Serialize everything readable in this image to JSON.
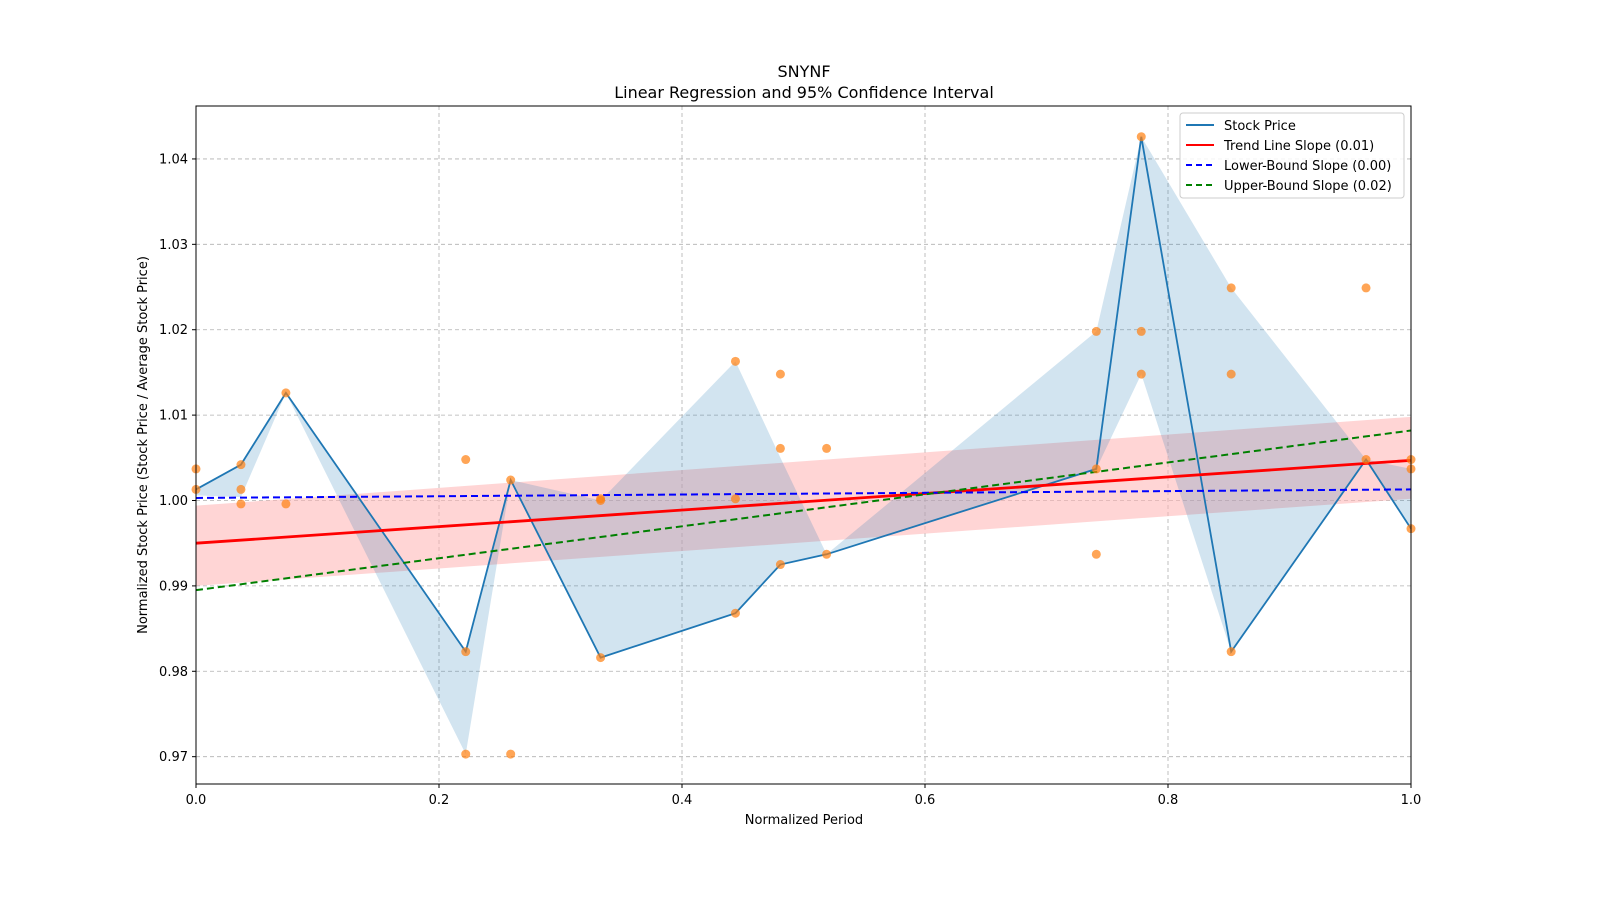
{
  "chart_data": {
    "type": "line",
    "title": "SNYNF",
    "subtitle": "Linear Regression and 95% Confidence Interval",
    "xlabel": "Normalized Period",
    "ylabel": "Normalized Stock Price (Stock Price / Average Stock Price)",
    "xlim": [
      0,
      1
    ],
    "ylim": [
      0.9668,
      1.0462
    ],
    "xticks": [
      0,
      0.2,
      0.4,
      0.6,
      0.8,
      1.0
    ],
    "xtick_labels": [
      "0.0",
      "0.2",
      "0.4",
      "0.6",
      "0.8",
      "1.0"
    ],
    "yticks": [
      0.97,
      0.98,
      0.99,
      1.0,
      1.01,
      1.02,
      1.03,
      1.04
    ],
    "ytick_labels": [
      "0.97",
      "0.98",
      "0.99",
      "1.00",
      "1.01",
      "1.02",
      "1.03",
      "1.04"
    ],
    "grid": true,
    "legend_position": "top-right",
    "colors": {
      "stock": "#1f77b4",
      "scatter": "#ff7f0e",
      "trend": "#ff0000",
      "lower": "#0000ff",
      "upper": "#008000",
      "trend_band": "#ffb3b3",
      "stock_band": "#1f77b4"
    },
    "legend": [
      {
        "label": "Stock Price",
        "style": "solid",
        "color": "#1f77b4"
      },
      {
        "label": "Trend Line Slope (0.01)",
        "style": "solid",
        "color": "#ff0000"
      },
      {
        "label": "Lower-Bound Slope (0.00)",
        "style": "dashed",
        "color": "#0000ff"
      },
      {
        "label": "Upper-Bound Slope (0.02)",
        "style": "dashed",
        "color": "#008000"
      }
    ],
    "stock_price": {
      "x": [
        0,
        0.037,
        0.074,
        0.222,
        0.259,
        0.333,
        0.444,
        0.481,
        0.519,
        0.741,
        0.778,
        0.852,
        0.963,
        1.0
      ],
      "y": [
        1.0013,
        1.0042,
        1.0126,
        0.9823,
        1.0024,
        0.9816,
        0.9868,
        0.9925,
        0.9937,
        1.0037,
        1.0426,
        0.9823,
        1.0048,
        0.9967
      ]
    },
    "stock_band": {
      "x": [
        0,
        0.037,
        0.074,
        0.222,
        0.259,
        0.333,
        0.444,
        0.481,
        0.519,
        0.741,
        0.778,
        0.852,
        0.963,
        1.0
      ],
      "lower": [
        1.0006,
        1.0004,
        1.0126,
        0.9703,
        1.0024,
        0.9816,
        0.9868,
        0.9925,
        0.9937,
        1.0037,
        1.0148,
        0.9823,
        1.0048,
        0.9967
      ],
      "upper": [
        1.0013,
        1.0042,
        1.0126,
        0.9823,
        1.0024,
        1.0,
        1.0163,
        1.005,
        0.9937,
        1.0198,
        1.0426,
        1.0249,
        1.0048,
        1.0037
      ]
    },
    "scatter": [
      [
        0,
        1.0037
      ],
      [
        0,
        1.0013
      ],
      [
        0.037,
        1.0042
      ],
      [
        0.037,
        1.0013
      ],
      [
        0.037,
        0.9996
      ],
      [
        0.074,
        1.0126
      ],
      [
        0.074,
        0.9996
      ],
      [
        0.222,
        1.0048
      ],
      [
        0.222,
        0.9823
      ],
      [
        0.222,
        0.9703
      ],
      [
        0.259,
        1.0024
      ],
      [
        0.259,
        0.9703
      ],
      [
        0.333,
        1.0002
      ],
      [
        0.333,
        1.0
      ],
      [
        0.333,
        0.9816
      ],
      [
        0.444,
        1.0163
      ],
      [
        0.444,
        1.0002
      ],
      [
        0.444,
        0.9868
      ],
      [
        0.481,
        1.0148
      ],
      [
        0.481,
        1.0061
      ],
      [
        0.481,
        0.9925
      ],
      [
        0.519,
        1.0061
      ],
      [
        0.519,
        0.9937
      ],
      [
        0.741,
        1.0198
      ],
      [
        0.741,
        1.0037
      ],
      [
        0.741,
        0.9937
      ],
      [
        0.778,
        1.0426
      ],
      [
        0.778,
        1.0198
      ],
      [
        0.778,
        1.0148
      ],
      [
        0.852,
        1.0249
      ],
      [
        0.852,
        1.0148
      ],
      [
        0.852,
        0.9823
      ],
      [
        0.963,
        1.0249
      ],
      [
        0.963,
        1.0048
      ],
      [
        1.0,
        1.0048
      ],
      [
        1.0,
        1.0037
      ],
      [
        1.0,
        0.9967
      ]
    ],
    "trend_line": {
      "x": [
        0,
        1
      ],
      "y": [
        0.995,
        1.0047
      ]
    },
    "trend_band": {
      "x": [
        0,
        1
      ],
      "lower": [
        0.99,
        1.0002
      ],
      "upper": [
        0.9994,
        1.0098
      ]
    },
    "lower_bound_line": {
      "x": [
        0,
        1
      ],
      "y": [
        1.0003,
        1.0013
      ]
    },
    "upper_bound_line": {
      "x": [
        0,
        1
      ],
      "y": [
        0.9895,
        1.0082
      ]
    }
  }
}
